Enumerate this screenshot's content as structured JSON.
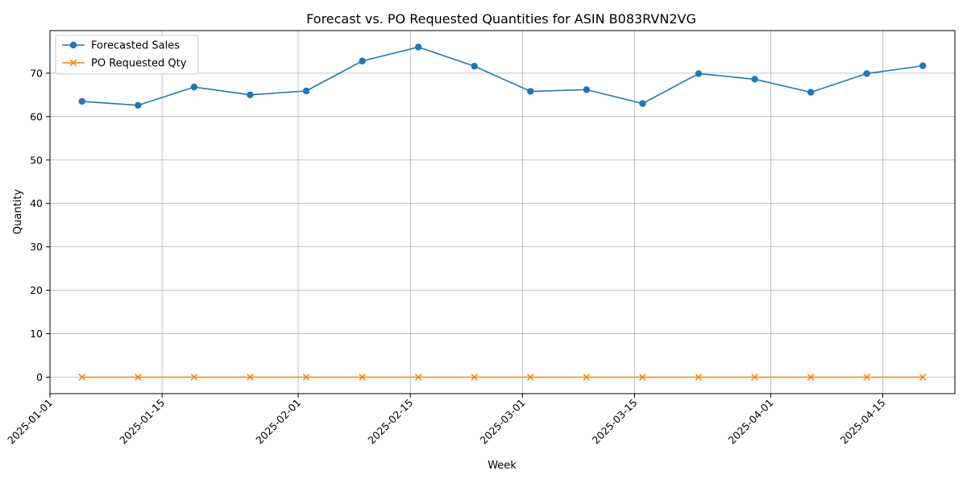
{
  "chart_data": {
    "type": "line",
    "title": "Forecast vs. PO Requested Quantities for ASIN B083RVN2VG",
    "xlabel": "Week",
    "ylabel": "Quantity",
    "x": [
      "2025-01-05",
      "2025-01-12",
      "2025-01-19",
      "2025-01-26",
      "2025-02-02",
      "2025-02-09",
      "2025-02-16",
      "2025-02-23",
      "2025-03-02",
      "2025-03-09",
      "2025-03-16",
      "2025-03-23",
      "2025-03-30",
      "2025-04-06",
      "2025-04-13",
      "2025-04-20"
    ],
    "xlim": [
      "2025-01-01",
      "2025-04-24"
    ],
    "ylim": [
      -3.8,
      79.8
    ],
    "x_ticks": [
      "2025-01-01",
      "2025-01-15",
      "2025-02-01",
      "2025-02-15",
      "2025-03-01",
      "2025-03-15",
      "2025-04-01",
      "2025-04-15"
    ],
    "y_ticks": [
      0,
      10,
      20,
      30,
      40,
      50,
      60,
      70
    ],
    "grid": true,
    "legend_position": "top-left",
    "series": [
      {
        "name": "Forecasted Sales",
        "color": "#1f77b4",
        "marker": "circle",
        "values": [
          63.5,
          62.6,
          66.8,
          65.0,
          65.9,
          72.8,
          76.0,
          71.6,
          65.8,
          66.2,
          63.0,
          69.9,
          68.6,
          65.6,
          69.9,
          71.7
        ]
      },
      {
        "name": "PO Requested Qty",
        "color": "#ff7f0e",
        "marker": "x",
        "values": [
          0,
          0,
          0,
          0,
          0,
          0,
          0,
          0,
          0,
          0,
          0,
          0,
          0,
          0,
          0,
          0
        ]
      }
    ]
  }
}
